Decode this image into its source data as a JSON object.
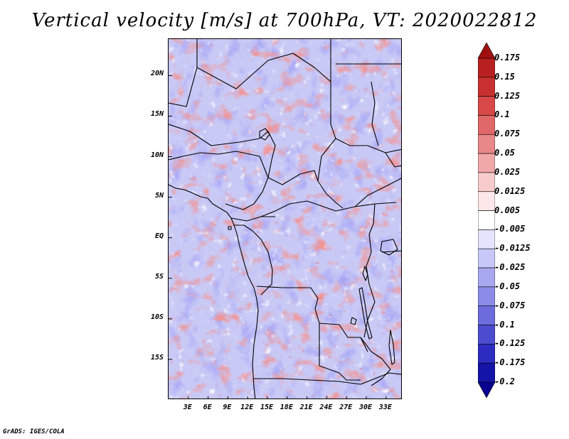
{
  "title": "Vertical velocity [m/s] at 700hPa, VT: 2020022812",
  "credit": "GrADS: IGES/COLA",
  "map": {
    "lon_range": [
      0,
      35.5
    ],
    "lat_range": [
      -20,
      24.5
    ],
    "y_ticks": [
      {
        "lat": 20,
        "label": "20N"
      },
      {
        "lat": 15,
        "label": "15N"
      },
      {
        "lat": 10,
        "label": "10N"
      },
      {
        "lat": 5,
        "label": "5N"
      },
      {
        "lat": 0,
        "label": "EQ"
      },
      {
        "lat": -5,
        "label": "5S"
      },
      {
        "lat": -10,
        "label": "10S"
      },
      {
        "lat": -15,
        "label": "15S"
      }
    ],
    "x_ticks": [
      {
        "lon": 3,
        "label": "3E"
      },
      {
        "lon": 6,
        "label": "6E"
      },
      {
        "lon": 9,
        "label": "9E"
      },
      {
        "lon": 12,
        "label": "12E"
      },
      {
        "lon": 15,
        "label": "15E"
      },
      {
        "lon": 18,
        "label": "18E"
      },
      {
        "lon": 21,
        "label": "21E"
      },
      {
        "lon": 24,
        "label": "24E"
      },
      {
        "lon": 27,
        "label": "27E"
      },
      {
        "lon": 30,
        "label": "30E"
      },
      {
        "lon": 33,
        "label": "33E"
      }
    ],
    "coastline_color": "#000000",
    "border_color": "#000000"
  },
  "colorbar": {
    "labels": [
      "0.175",
      "0.15",
      "0.125",
      "0.1",
      "0.075",
      "0.05",
      "0.025",
      "0.0125",
      "0.005",
      "-0.005",
      "-0.0125",
      "-0.025",
      "-0.05",
      "-0.075",
      "-0.1",
      "-0.125",
      "-0.175",
      "-0.2"
    ],
    "colors": [
      "#a01010",
      "#b82020",
      "#c83030",
      "#d84848",
      "#e06868",
      "#e88888",
      "#f0a8a8",
      "#f8cccc",
      "#fce8e8",
      "#ffffff",
      "#e4e4fc",
      "#c8c8f8",
      "#a8a8f0",
      "#8c8ce8",
      "#6c6cdc",
      "#4c4cd0",
      "#2c2cc0",
      "#1414a8",
      "#0a0090"
    ]
  }
}
